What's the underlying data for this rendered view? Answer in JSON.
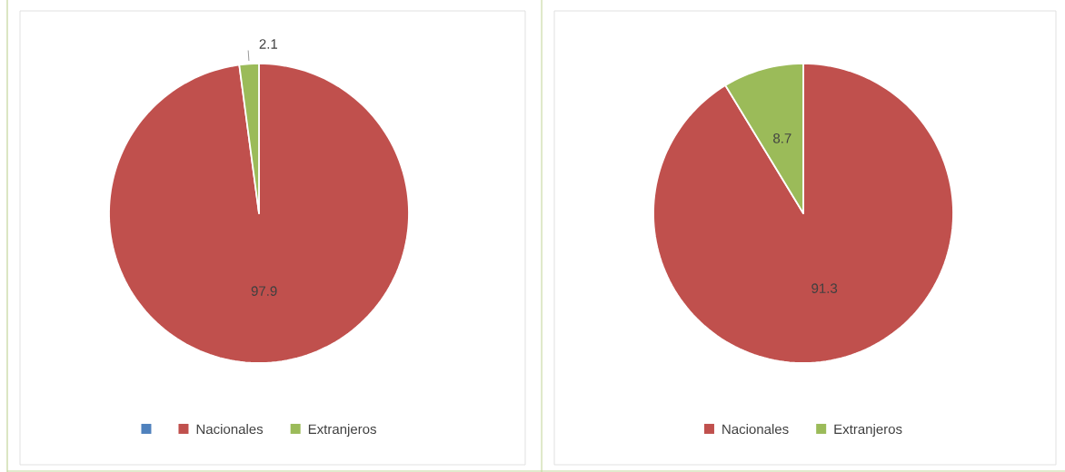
{
  "chart_data": [
    {
      "type": "pie",
      "categories": [
        null,
        "Nacionales",
        "Extranjeros"
      ],
      "values": [
        0,
        97.9,
        2.1
      ],
      "colors": [
        "#4f81bd",
        "#c0504d",
        "#9bbb59"
      ],
      "data_labels": true,
      "legend": "bottom"
    },
    {
      "type": "pie",
      "categories": [
        "Nacionales",
        "Extranjeros"
      ],
      "values": [
        91.3,
        8.7
      ],
      "colors": [
        "#c0504d",
        "#9bbb59"
      ],
      "data_labels": true,
      "legend": "bottom"
    }
  ]
}
